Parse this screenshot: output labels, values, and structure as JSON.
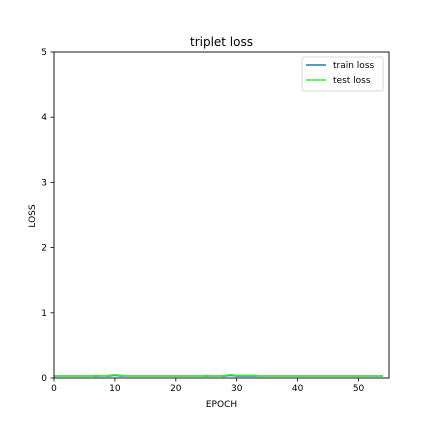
{
  "chart_data": {
    "type": "line",
    "title": "triplet loss",
    "xlabel": "EPOCH",
    "ylabel": "LOSS",
    "xlim": [
      0,
      55
    ],
    "ylim": [
      0,
      5
    ],
    "xticks": [
      0,
      10,
      20,
      30,
      40,
      50
    ],
    "yticks": [
      0,
      1,
      2,
      3,
      4,
      5
    ],
    "grid": false,
    "legend_position": "top-right",
    "series": [
      {
        "name": "train loss",
        "color": "#1f77b4",
        "x": [
          0,
          1,
          2,
          3,
          4,
          5,
          6,
          7,
          8,
          9,
          10,
          11,
          12,
          13,
          14,
          15,
          16,
          17,
          18,
          19,
          20,
          21,
          22,
          23,
          24,
          25,
          26,
          27,
          28,
          29,
          30,
          31,
          32,
          33,
          34,
          35,
          36,
          37,
          38,
          39,
          40,
          41,
          42,
          43,
          44,
          45,
          46,
          47,
          48,
          49,
          50,
          51,
          52,
          53,
          54
        ],
        "values": [
          0.03,
          0.03,
          0.03,
          0.03,
          0.03,
          0.03,
          0.03,
          0.03,
          0.03,
          0.03,
          0.04,
          0.03,
          0.03,
          0.03,
          0.03,
          0.03,
          0.03,
          0.03,
          0.03,
          0.03,
          0.03,
          0.03,
          0.03,
          0.03,
          0.03,
          0.03,
          0.03,
          0.03,
          0.03,
          0.04,
          0.03,
          0.03,
          0.03,
          0.03,
          0.03,
          0.03,
          0.03,
          0.03,
          0.03,
          0.03,
          0.03,
          0.03,
          0.03,
          0.03,
          0.03,
          0.03,
          0.03,
          0.03,
          0.03,
          0.03,
          0.03,
          0.03,
          0.03,
          0.03,
          0.03
        ]
      },
      {
        "name": "test loss",
        "color": "#33ee33",
        "x": [
          0,
          1,
          2,
          3,
          4,
          5,
          6,
          7,
          8,
          9,
          10,
          11,
          12,
          13,
          14,
          15,
          16,
          17,
          18,
          19,
          20,
          21,
          22,
          23,
          24,
          25,
          26,
          27,
          28,
          29,
          30,
          31,
          32,
          33,
          34,
          35,
          36,
          37,
          38,
          39,
          40,
          41,
          42,
          43,
          44,
          45,
          46,
          47,
          48,
          49,
          50,
          51,
          52,
          53,
          54
        ],
        "values": [
          0.03,
          0.03,
          0.03,
          0.03,
          0.03,
          0.03,
          0.03,
          0.04,
          0.03,
          0.04,
          0.05,
          0.04,
          0.03,
          0.03,
          0.03,
          0.03,
          0.03,
          0.03,
          0.03,
          0.03,
          0.03,
          0.03,
          0.03,
          0.03,
          0.03,
          0.04,
          0.03,
          0.03,
          0.04,
          0.05,
          0.04,
          0.04,
          0.04,
          0.04,
          0.03,
          0.03,
          0.03,
          0.03,
          0.03,
          0.03,
          0.03,
          0.03,
          0.03,
          0.03,
          0.03,
          0.03,
          0.03,
          0.03,
          0.03,
          0.03,
          0.03,
          0.03,
          0.03,
          0.03,
          0.03
        ]
      }
    ]
  }
}
